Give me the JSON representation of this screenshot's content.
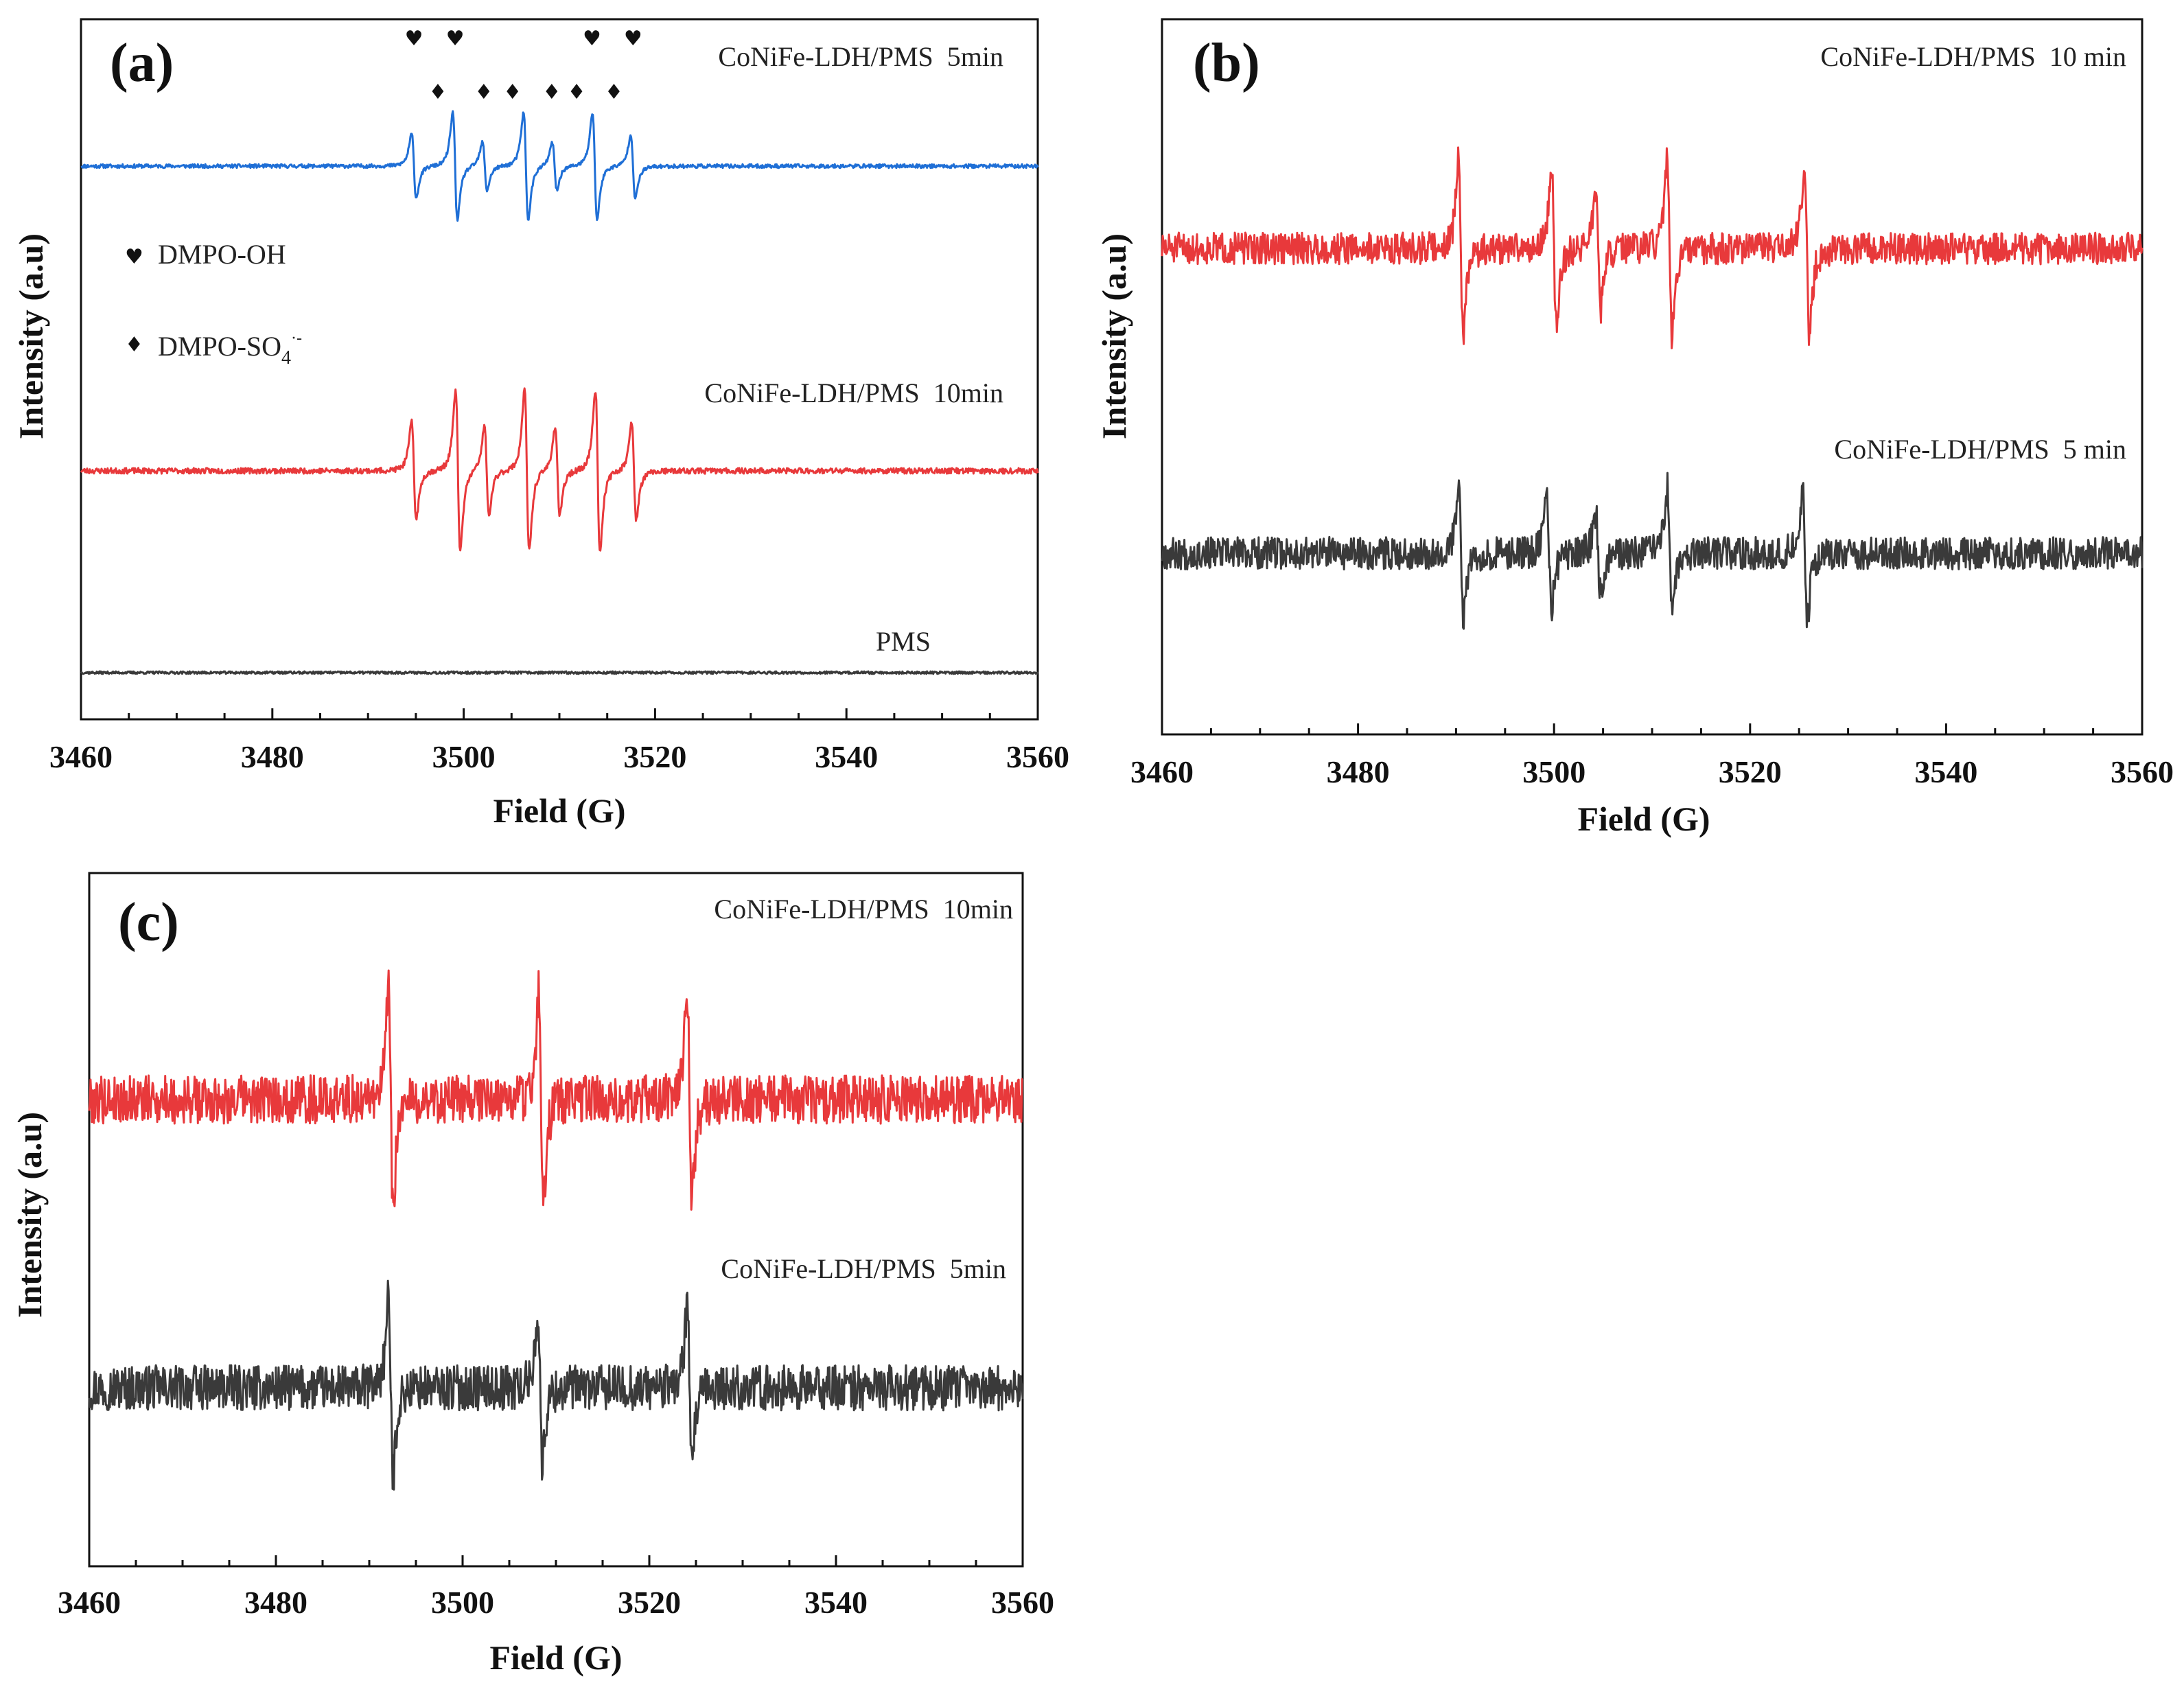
{
  "chart_data": [
    {
      "type": "line",
      "panel_label": "(a)",
      "xlabel": "Field (G)",
      "ylabel": "Intensity (a.u)",
      "xlim": [
        3460,
        3560
      ],
      "xticks": [
        "3460",
        "3480",
        "3500",
        "3520",
        "3540",
        "3560"
      ],
      "legend": [
        {
          "symbol": "♥",
          "label": "DMPO-OH"
        },
        {
          "symbol": "♦",
          "label": "DMPO-SO",
          "sub": "4",
          "sup": "·-"
        }
      ],
      "hydroxyl_marker_fields": [
        3494.8,
        3499.1,
        3513.4,
        3517.7
      ],
      "sulfate_marker_fields": [
        3497.3,
        3502.1,
        3505.1,
        3509.2,
        3511.8,
        3515.7
      ],
      "series": [
        {
          "name": "CoNiFe-LDH/PMS  5min",
          "color": "#1f6fd6",
          "noise": 0.035,
          "peaks": [
            [
              3494.8,
              0.6
            ],
            [
              3499.1,
              1.0
            ],
            [
              3502.2,
              0.45
            ],
            [
              3506.5,
              1.0
            ],
            [
              3509.5,
              0.45
            ],
            [
              3513.7,
              1.0
            ],
            [
              3517.7,
              0.6
            ]
          ]
        },
        {
          "name": "CoNiFe-LDH/PMS  10min",
          "color": "#e8393b",
          "noise": 0.035,
          "peaks": [
            [
              3494.8,
              0.6
            ],
            [
              3499.4,
              1.0
            ],
            [
              3502.4,
              0.55
            ],
            [
              3506.6,
              1.0
            ],
            [
              3509.8,
              0.55
            ],
            [
              3514.0,
              1.0
            ],
            [
              3517.8,
              0.6
            ]
          ]
        },
        {
          "name": "PMS",
          "color": "#3a3a3a",
          "noise": 0.03,
          "peaks": []
        }
      ]
    },
    {
      "type": "line",
      "panel_label": "(b)",
      "xlabel": "Field (G)",
      "ylabel": "Intensity (a.u)",
      "xlim": [
        3460,
        3560
      ],
      "xticks": [
        "3460",
        "3480",
        "3500",
        "3520",
        "3540",
        "3560"
      ],
      "series": [
        {
          "name": "CoNiFe-LDH/PMS  10 min",
          "color": "#e8393b",
          "noise": 0.18,
          "peaks": [
            [
              3490.5,
              1.0
            ],
            [
              3500.0,
              0.9
            ],
            [
              3504.5,
              0.7
            ],
            [
              3511.8,
              1.0
            ],
            [
              3525.8,
              1.0
            ]
          ]
        },
        {
          "name": "CoNiFe-LDH/PMS  5 min",
          "color": "#3a3a3a",
          "noise": 0.2,
          "peaks": [
            [
              3490.5,
              0.8
            ],
            [
              3499.5,
              0.7
            ],
            [
              3504.5,
              0.5
            ],
            [
              3511.8,
              0.8
            ],
            [
              3525.6,
              0.8
            ]
          ]
        }
      ]
    },
    {
      "type": "line",
      "panel_label": "(c)",
      "xlabel": "Field (G)",
      "ylabel": "Intensity (a.u)",
      "xlim": [
        3460,
        3560
      ],
      "xticks": [
        "3460",
        "3480",
        "3500",
        "3520",
        "3540",
        "3560"
      ],
      "series": [
        {
          "name": "CoNiFe-LDH/PMS  10min",
          "color": "#e8393b",
          "noise": 0.22,
          "peaks": [
            [
              3492.3,
              1.0
            ],
            [
              3508.4,
              1.0
            ],
            [
              3524.3,
              1.0
            ]
          ]
        },
        {
          "name": "CoNiFe-LDH/PMS  5min",
          "color": "#3a3a3a",
          "noise": 0.22,
          "peaks": [
            [
              3492.3,
              0.85
            ],
            [
              3508.3,
              0.75
            ],
            [
              3524.3,
              0.8
            ]
          ]
        }
      ]
    }
  ]
}
